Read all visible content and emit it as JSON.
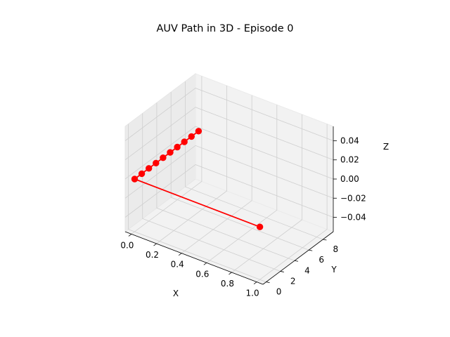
{
  "chart_data": {
    "type": "line3d",
    "title": "AUV Path in 3D - Episode 0",
    "xlabel": "X",
    "ylabel": "Y",
    "zlabel": "Z",
    "xlim": [
      -0.05,
      1.05
    ],
    "ylim": [
      -0.45,
      9.45
    ],
    "zlim": [
      -0.055,
      0.055
    ],
    "xticks": [
      "0.0",
      "0.2",
      "0.4",
      "0.6",
      "0.8",
      "1.0"
    ],
    "yticks": [
      "0",
      "2",
      "4",
      "6",
      "8"
    ],
    "zticks": [
      "−0.04",
      "−0.02",
      "0.00",
      "0.02",
      "0.04"
    ],
    "series": [
      {
        "color": "#ff0000",
        "marker": "circle",
        "points": [
          {
            "x": 1,
            "y": 0,
            "z": 0
          },
          {
            "x": 0,
            "y": 0,
            "z": 0
          },
          {
            "x": 0,
            "y": 1,
            "z": 0
          },
          {
            "x": 0,
            "y": 2,
            "z": 0
          },
          {
            "x": 0,
            "y": 3,
            "z": 0
          },
          {
            "x": 0,
            "y": 4,
            "z": 0
          },
          {
            "x": 0,
            "y": 5,
            "z": 0
          },
          {
            "x": 0,
            "y": 6,
            "z": 0
          },
          {
            "x": 0,
            "y": 7,
            "z": 0
          },
          {
            "x": 0,
            "y": 8,
            "z": 0
          },
          {
            "x": 0,
            "y": 9,
            "z": 0
          }
        ]
      }
    ],
    "grid": true
  }
}
